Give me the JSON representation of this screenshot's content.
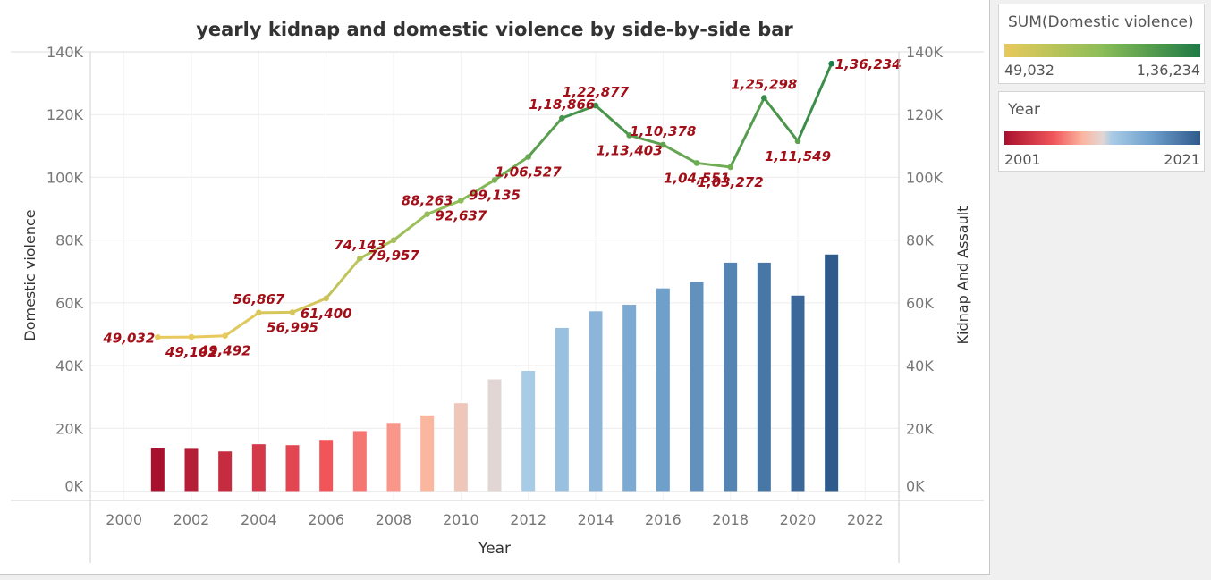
{
  "chart_data": {
    "type": "bar+line",
    "title": "yearly kidnap and domestic violence by side-by-side bar",
    "xlabel": "Year",
    "ylabel_left": "Domestic violence",
    "ylabel_right": "Kidnap And Assault",
    "xlim": [
      1999,
      2023
    ],
    "x_ticks": [
      2000,
      2002,
      2004,
      2006,
      2008,
      2010,
      2012,
      2014,
      2016,
      2018,
      2020,
      2022
    ],
    "ylim": [
      -3000,
      140000
    ],
    "y_ticks": [
      {
        "value": 0,
        "label": "0K"
      },
      {
        "value": 20000,
        "label": "20K"
      },
      {
        "value": 40000,
        "label": "40K"
      },
      {
        "value": 60000,
        "label": "60K"
      },
      {
        "value": 80000,
        "label": "80K"
      },
      {
        "value": 100000,
        "label": "100K"
      },
      {
        "value": 120000,
        "label": "120K"
      },
      {
        "value": 140000,
        "label": "140K"
      }
    ],
    "years": [
      2001,
      2002,
      2003,
      2004,
      2005,
      2006,
      2007,
      2008,
      2009,
      2010,
      2011,
      2012,
      2013,
      2014,
      2015,
      2016,
      2017,
      2018,
      2019,
      2020,
      2021
    ],
    "domestic_violence": [
      49032,
      49102,
      49492,
      56867,
      56995,
      61400,
      74143,
      79957,
      88263,
      92637,
      99135,
      106527,
      118866,
      122877,
      113403,
      110378,
      104551,
      103272,
      125298,
      111549,
      136234
    ],
    "domestic_violence_labels": [
      "49,032",
      "49,102",
      "49,492",
      "56,867",
      "56,995",
      "61,400",
      "74,143",
      "79,957",
      "88,263",
      "92,637",
      "99,135",
      "1,06,527",
      "1,18,866",
      "1,22,877",
      "1,13,403",
      "1,10,378",
      "1,04,551",
      "1,03,272",
      "1,25,298",
      "1,11,549",
      "1,36,234"
    ],
    "kidnap_and_assault": [
      13800,
      13700,
      12600,
      14900,
      14600,
      16300,
      19100,
      21700,
      24100,
      28000,
      35600,
      38300,
      52000,
      57300,
      59400,
      64600,
      66700,
      72800,
      72800,
      62300,
      75400
    ],
    "label_position": [
      "above",
      "below",
      "below",
      "above",
      "below",
      "below",
      "above",
      "below",
      "above",
      "below",
      "below",
      "below",
      "above",
      "above",
      "below",
      "above",
      "below",
      "below",
      "above",
      "below",
      "right"
    ],
    "colors": {
      "line_low": "#e8c95c",
      "line_mid": "#8bbd58",
      "line_high": "#1e7a45",
      "bar_start": "#a8102e",
      "bar_mid": "#e2d6d4",
      "bar_end": "#2e5a8c",
      "data_label": "#a20f18"
    }
  },
  "legends": {
    "domestic": {
      "title": "SUM(Domestic violence)",
      "min_label": "49,032",
      "max_label": "1,36,234"
    },
    "year": {
      "title": "Year",
      "min_label": "2001",
      "max_label": "2021"
    }
  }
}
